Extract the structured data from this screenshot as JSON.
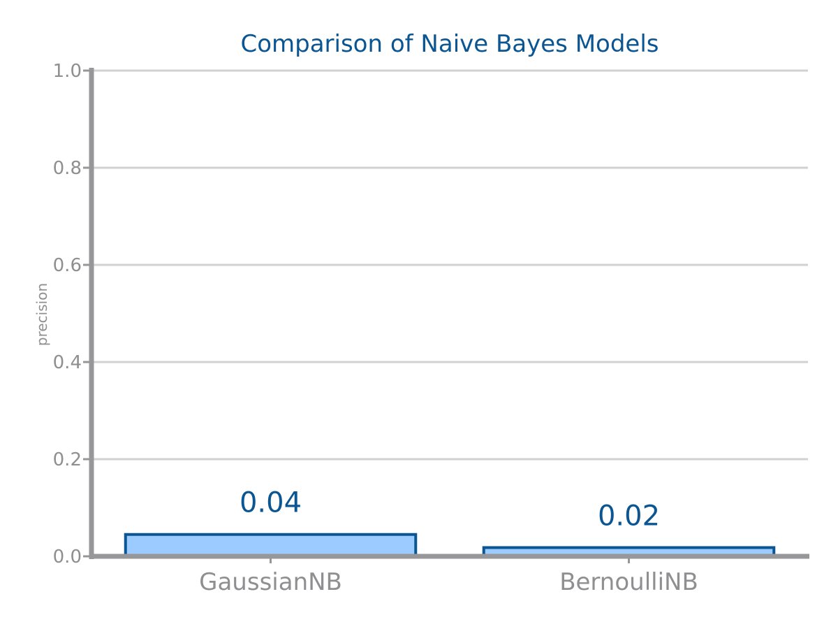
{
  "chart_data": {
    "type": "bar",
    "title": "Comparison of Naive Bayes Models",
    "xlabel": "",
    "ylabel": "precision",
    "categories": [
      "GaussianNB",
      "BernoulliNB"
    ],
    "values": [
      0.045,
      0.018
    ],
    "data_labels": [
      "0.04",
      "0.02"
    ],
    "ylim": [
      0,
      1.0
    ],
    "yticks": [
      0.0,
      0.2,
      0.4,
      0.6,
      0.8,
      1.0
    ],
    "ytick_labels": [
      "0.0",
      "0.2",
      "0.4",
      "0.6",
      "0.8",
      "1.0"
    ],
    "grid": true,
    "colors": {
      "title": "#0a5592",
      "bar_fill": "#9ccbff",
      "bar_stroke": "#0a5592",
      "data_label": "#0a5592",
      "axis": "#97979a",
      "grid": "#d1d1d1",
      "tick_text": "#8f8f92"
    }
  }
}
